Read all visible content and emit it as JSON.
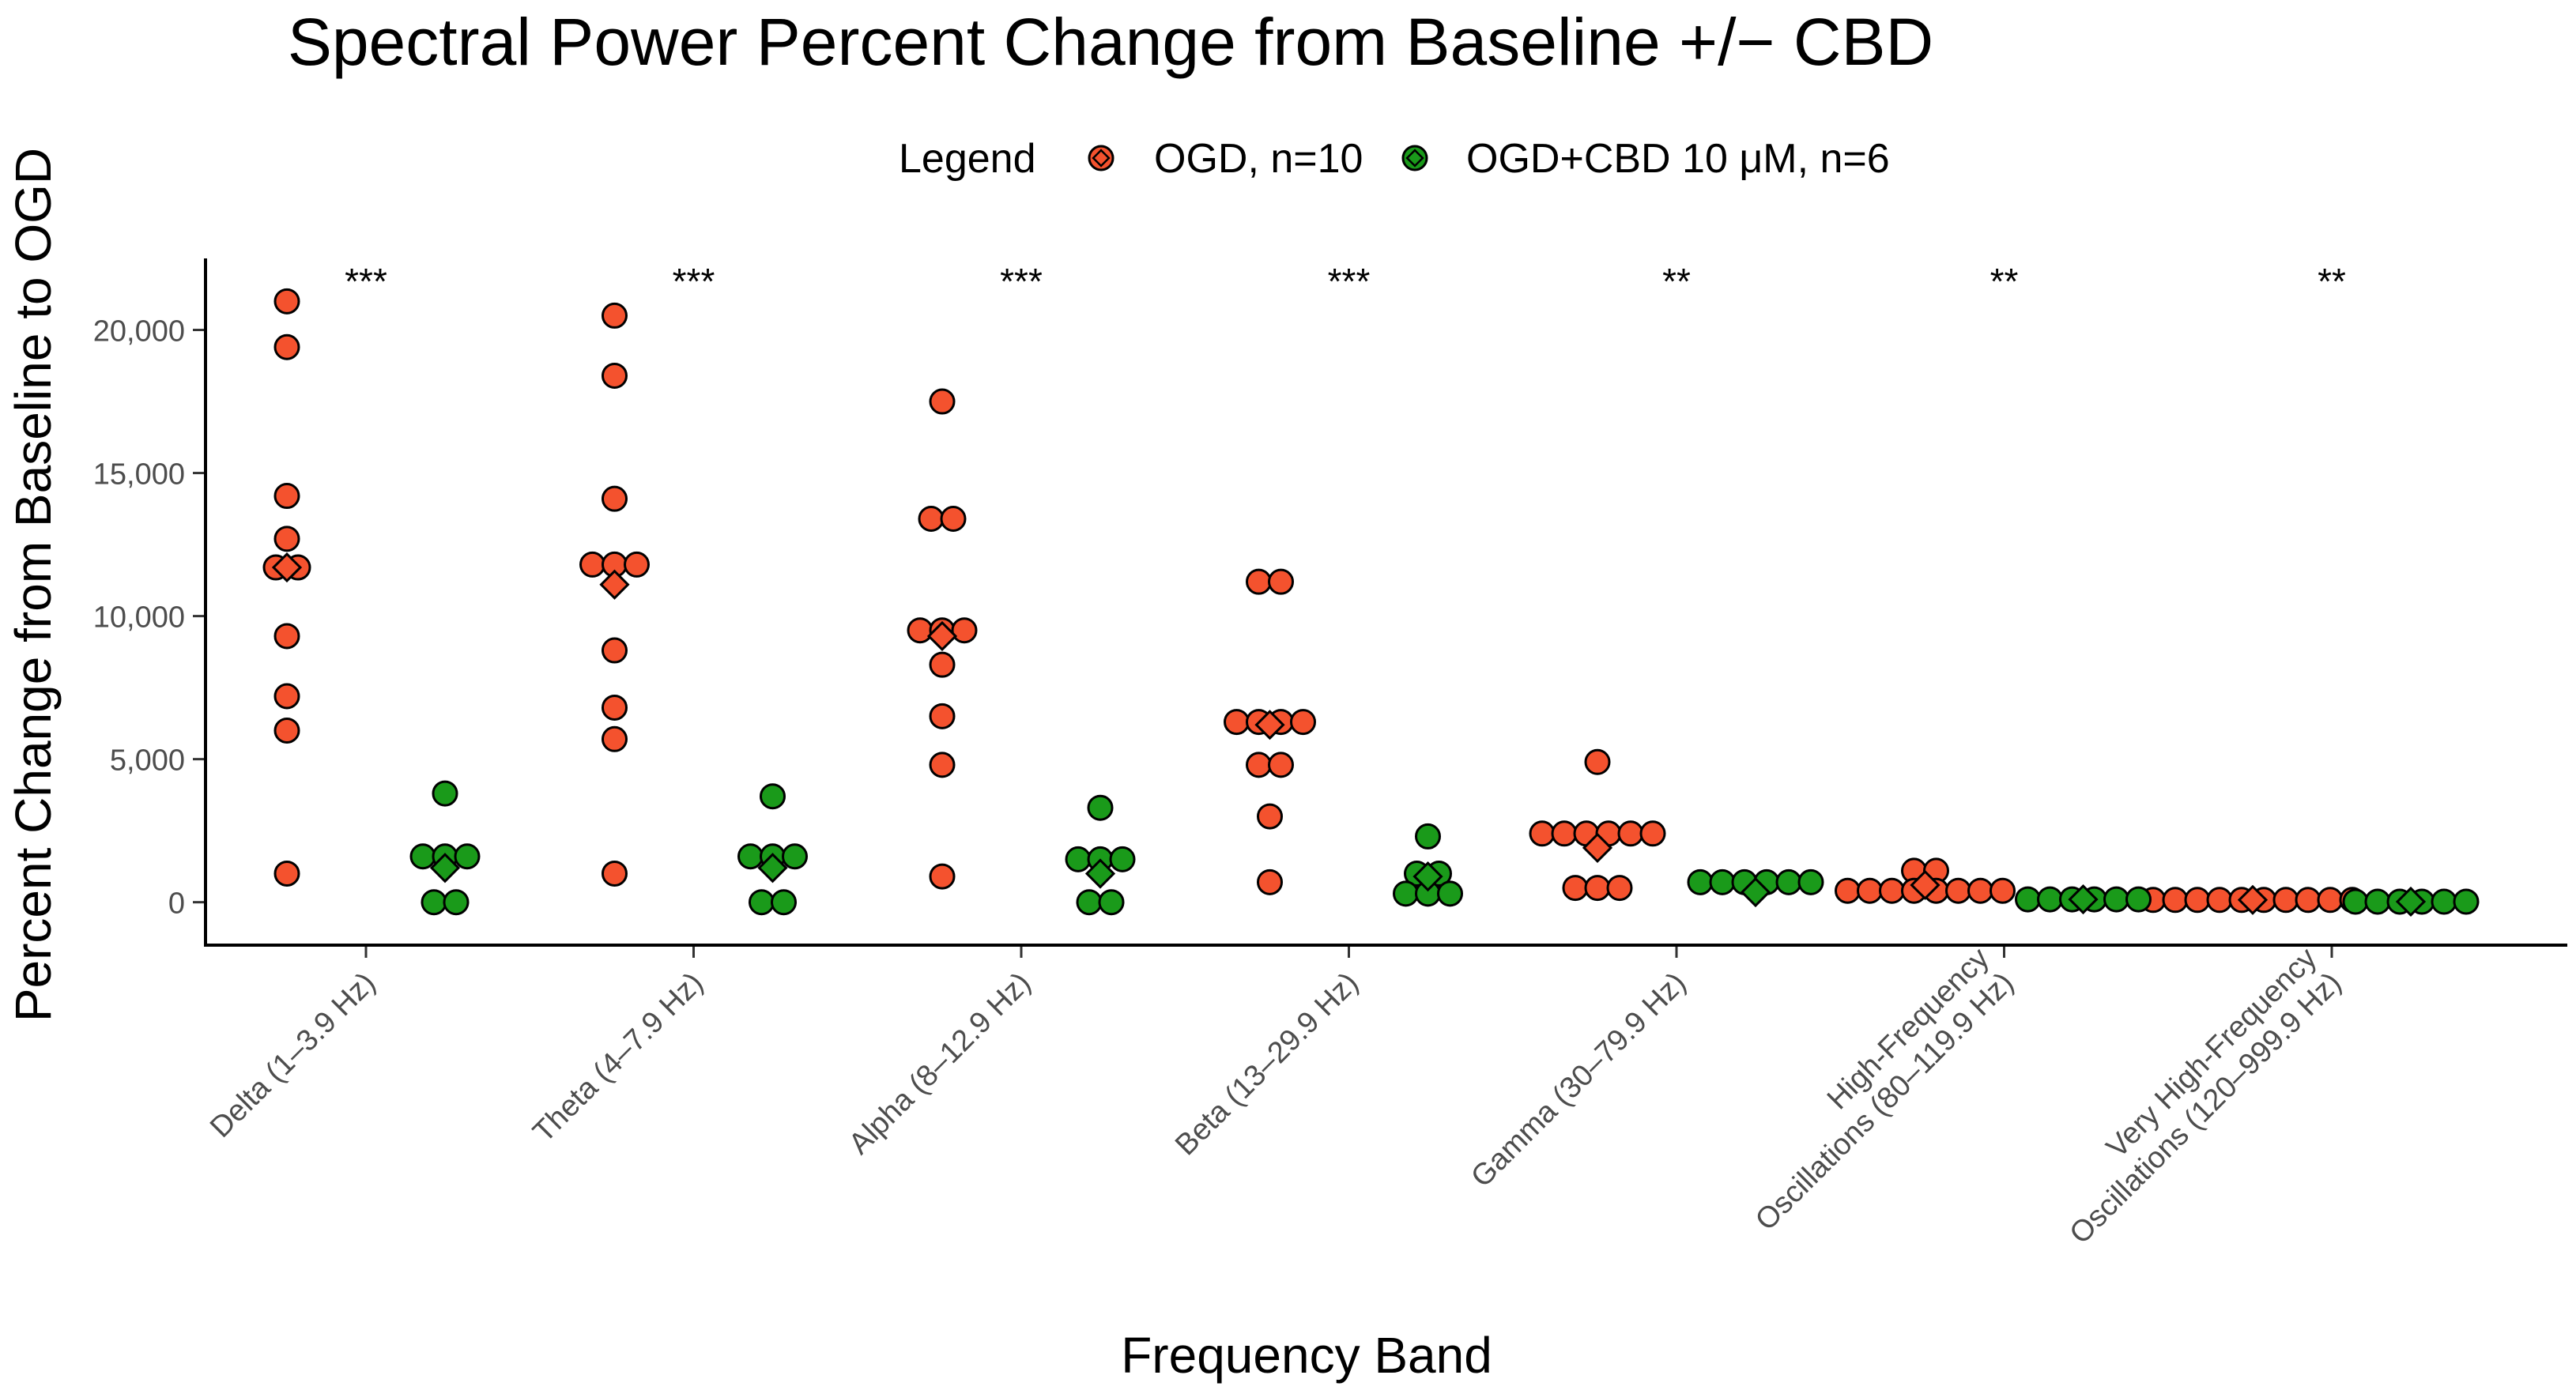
{
  "chart_data": {
    "type": "scatter",
    "title": "Spectral Power Percent Change from Baseline +/− CBD",
    "xlabel": "Frequency Band",
    "ylabel": "Percent Change from Baseline to OGD",
    "ylim": [
      -1500,
      22500
    ],
    "yticks": [
      0,
      5000,
      10000,
      15000,
      20000
    ],
    "ytick_labels": [
      "0",
      "5,000",
      "10,000",
      "15,000",
      "20,000"
    ],
    "legend": {
      "title": "Legend",
      "position": "top",
      "entries": [
        {
          "name": "OGD, n=10",
          "color": "#F4522E"
        },
        {
          "name": "OGD+CBD 10 μM, n=6",
          "color": "#1A9A1A"
        }
      ]
    },
    "categories": [
      {
        "lines": [
          "Delta (1–3.9 Hz)"
        ],
        "significance": "***"
      },
      {
        "lines": [
          "Theta (4–7.9 Hz)"
        ],
        "significance": "***"
      },
      {
        "lines": [
          "Alpha (8–12.9 Hz)"
        ],
        "significance": "***"
      },
      {
        "lines": [
          "Beta (13–29.9 Hz)"
        ],
        "significance": "***"
      },
      {
        "lines": [
          "Gamma (30–79.9 Hz)"
        ],
        "significance": "**"
      },
      {
        "lines": [
          "High-Frequency",
          "Oscillations (80–119.9 Hz)"
        ],
        "significance": "**"
      },
      {
        "lines": [
          "Very High-Frequency",
          "Oscillations (120–999.9 Hz)"
        ],
        "significance": "**"
      }
    ],
    "series": [
      {
        "name": "OGD, n=10",
        "color": "#F4522E",
        "values": [
          [
            21000,
            19400,
            14200,
            12700,
            11700,
            11700,
            9300,
            7200,
            6000,
            1000
          ],
          [
            20500,
            18400,
            14100,
            11800,
            11200,
            11200,
            8800,
            6800,
            5700,
            1000
          ],
          [
            17500,
            13400,
            13400,
            9500,
            9500,
            9500,
            8300,
            6500,
            4800,
            900
          ],
          [
            11200,
            11200,
            6300,
            6300,
            6300,
            6300,
            4800,
            4800,
            3000,
            700
          ],
          [
            4900,
            2400,
            2400,
            1800,
            1800,
            1800,
            1800,
            500,
            500,
            500
          ],
          [
            1100,
            1100,
            400,
            400,
            400,
            400,
            400,
            400,
            400,
            400
          ],
          [
            80,
            80,
            80,
            80,
            80,
            80,
            80,
            80,
            80,
            80
          ]
        ],
        "means": [
          11700,
          11100,
          9300,
          6200,
          1900,
          600,
          80
        ]
      },
      {
        "name": "OGD+CBD 10 μM, n=6",
        "color": "#1A9A1A",
        "values": [
          [
            3800,
            1600,
            1000,
            1000,
            0,
            0
          ],
          [
            3700,
            1600,
            1000,
            1000,
            0,
            0
          ],
          [
            3300,
            1500,
            1000,
            1000,
            0,
            0
          ],
          [
            2300,
            1000,
            1000,
            300,
            300,
            300
          ],
          [
            700,
            300,
            300,
            300,
            300,
            300
          ],
          [
            100,
            100,
            100,
            100,
            100,
            100
          ],
          [
            20,
            20,
            20,
            20,
            20,
            20
          ]
        ],
        "means": [
          1200,
          1200,
          1000,
          900,
          350,
          100,
          20
        ]
      }
    ]
  }
}
